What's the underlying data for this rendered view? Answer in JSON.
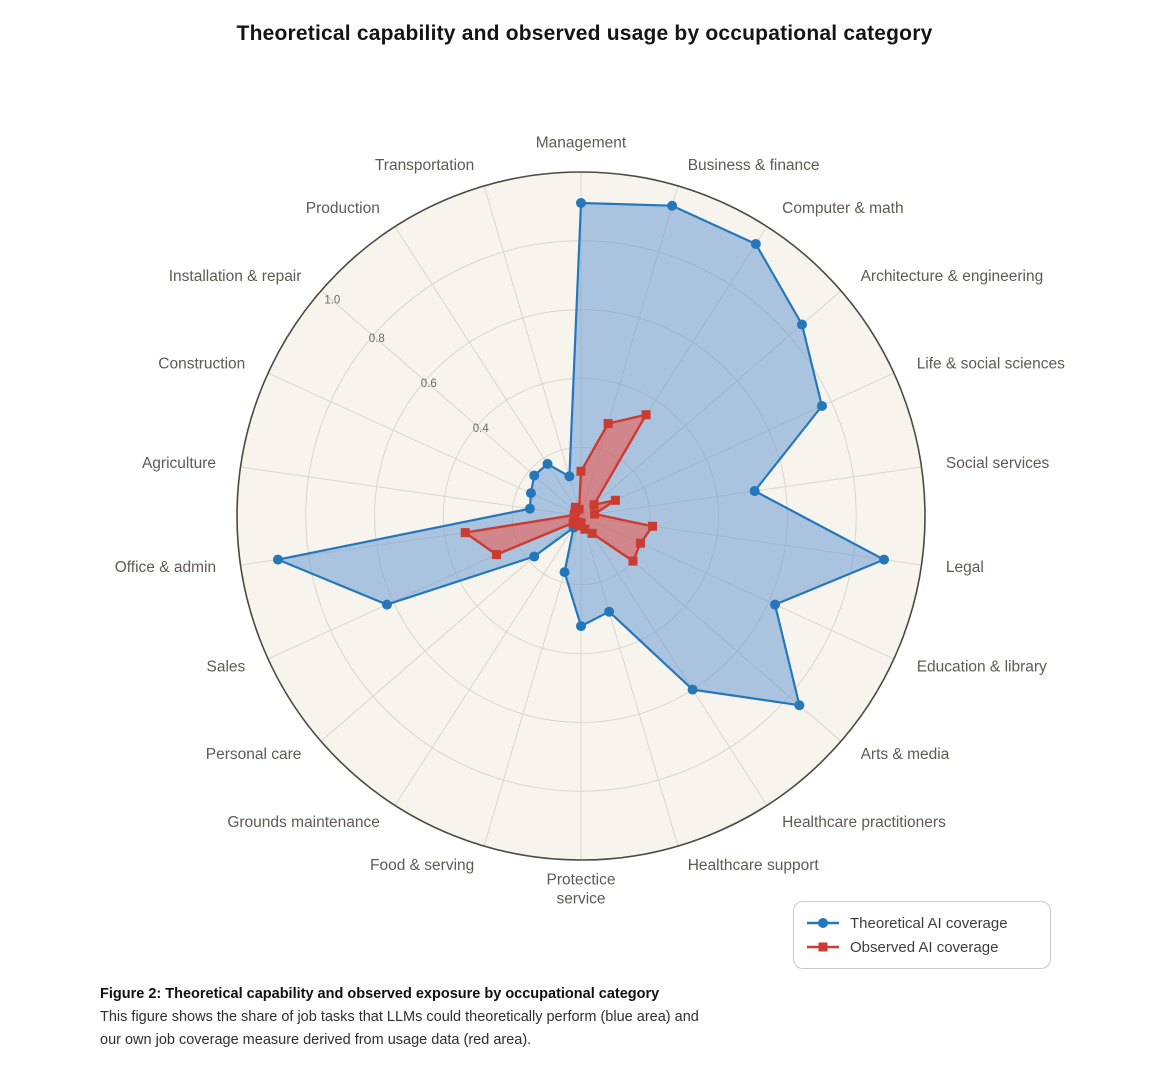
{
  "title": "Theoretical capability and observed usage by occupational category",
  "chart_data": {
    "type": "radar",
    "categories": [
      "Management",
      "Business & finance",
      "Computer & math",
      "Architecture & engineering",
      "Life & social sciences",
      "Social services",
      "Legal",
      "Education & library",
      "Arts & media",
      "Healthcare practitioners",
      "Healthcare support",
      "Protectice\nservice",
      "Food & serving",
      "Grounds maintenance",
      "Personal care",
      "Sales",
      "Office & admin",
      "Agriculture",
      "Construction",
      "Installation & repair",
      "Production",
      "Transportation"
    ],
    "series": [
      {
        "name": "Theoretical AI coverage",
        "marker": "circle",
        "color": "#2577bb",
        "fill_color": "rgba(108,157,211,0.55)",
        "values": [
          0.91,
          0.94,
          0.94,
          0.85,
          0.77,
          0.51,
          0.89,
          0.62,
          0.84,
          0.6,
          0.29,
          0.32,
          0.17,
          0.04,
          0.18,
          0.62,
          0.89,
          0.15,
          0.16,
          0.18,
          0.18,
          0.12
        ]
      },
      {
        "name": "Observed AI coverage",
        "marker": "square",
        "color": "#cc3b32",
        "fill_color": "rgba(233,96,87,0.62)",
        "values": [
          0.13,
          0.28,
          0.35,
          0.05,
          0.11,
          0.04,
          0.21,
          0.19,
          0.2,
          0.06,
          0.04,
          0.02,
          0.03,
          0.02,
          0.03,
          0.27,
          0.34,
          0.02,
          0.02,
          0.02,
          0.03,
          0.02
        ]
      }
    ],
    "radial_ticks": [
      0.4,
      0.6,
      0.8,
      1.0
    ],
    "grid_rings": [
      0.2,
      0.4,
      0.6,
      0.8,
      1.0
    ],
    "rmax": 1.0,
    "tick_label_axis": "Installation & repair",
    "grid": true,
    "legend_position": "bottom-right",
    "colors": {
      "plot_background": "#f7f4ee",
      "grid_line": "#dbd6ca",
      "outer_ring": "#4c4842",
      "category_label": "#5f5a52",
      "tick_label": "#6e6960"
    }
  },
  "caption": {
    "title": "Figure 2: Theoretical capability and observed exposure by occupational category",
    "body": "This figure shows the share of job tasks that LLMs could theoretically perform (blue area) and our own job coverage measure derived from usage data (red area)."
  }
}
